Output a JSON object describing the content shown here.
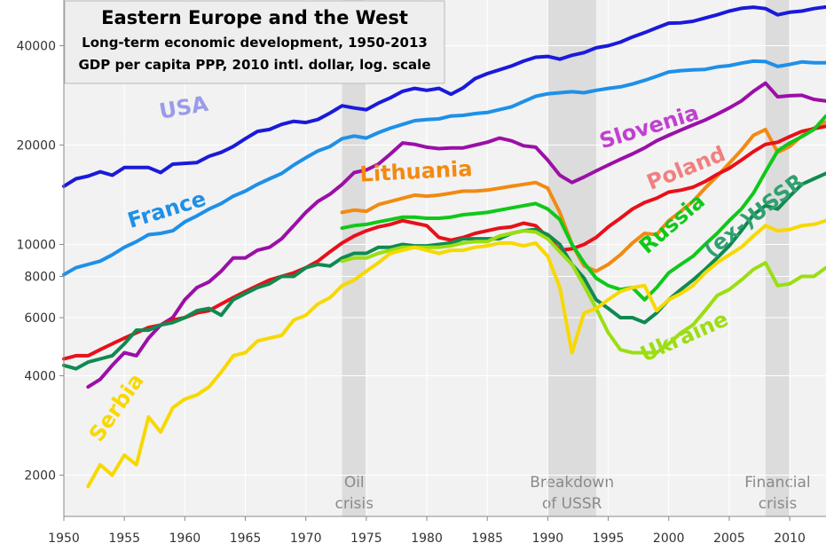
{
  "chart_data": {
    "type": "line",
    "title": "Eastern Europe and the West",
    "subtitle_1": "Long-term economic development, 1950-2013",
    "subtitle_2": "GDP per capita PPP, 2010 intl. dollar, log. scale",
    "xlabel": "",
    "ylabel": "",
    "xlim": [
      1950,
      2013
    ],
    "ylim": [
      1500,
      55000
    ],
    "yscale": "log",
    "grid": true,
    "x_ticks": [
      1950,
      1955,
      1960,
      1965,
      1970,
      1975,
      1980,
      1985,
      1990,
      1995,
      2000,
      2005,
      2010
    ],
    "y_ticks": [
      2000,
      4000,
      6000,
      8000,
      10000,
      20000,
      40000
    ],
    "y_tick_labels": [
      "2000",
      "4000",
      "6000",
      "8000",
      "10000",
      "20000",
      "40000"
    ],
    "shaded_periods": [
      {
        "start": 1973,
        "end": 1975,
        "label_1": "Oil",
        "label_2": "crisis"
      },
      {
        "start": 1990,
        "end": 1994,
        "label_1": "Breakdown",
        "label_2": "of USSR"
      },
      {
        "start": 2008,
        "end": 2010,
        "label_1": "Financial",
        "label_2": "crisis"
      }
    ],
    "series": [
      {
        "name": "USA",
        "color": "#1a1adb",
        "x": [
          1950,
          1951,
          1952,
          1953,
          1954,
          1955,
          1956,
          1957,
          1958,
          1959,
          1960,
          1961,
          1962,
          1963,
          1964,
          1965,
          1966,
          1967,
          1968,
          1969,
          1970,
          1971,
          1972,
          1973,
          1974,
          1975,
          1976,
          1977,
          1978,
          1979,
          1980,
          1981,
          1982,
          1983,
          1984,
          1985,
          1986,
          1987,
          1988,
          1989,
          1990,
          1991,
          1992,
          1993,
          1994,
          1995,
          1996,
          1997,
          1998,
          1999,
          2000,
          2001,
          2002,
          2003,
          2004,
          2005,
          2006,
          2007,
          2008,
          2009,
          2010,
          2011,
          2012,
          2013
        ],
        "values": [
          15000,
          15800,
          16100,
          16600,
          16200,
          17100,
          17100,
          17100,
          16500,
          17500,
          17600,
          17700,
          18500,
          19000,
          19800,
          20900,
          22000,
          22300,
          23100,
          23600,
          23400,
          23900,
          25000,
          26300,
          25900,
          25600,
          26800,
          27800,
          29100,
          29700,
          29300,
          29700,
          28500,
          29800,
          31800,
          32900,
          33800,
          34700,
          35900,
          36900,
          37100,
          36400,
          37400,
          38100,
          39400,
          40000,
          41000,
          42500,
          43800,
          45300,
          46800,
          46900,
          47400,
          48500,
          49600,
          50900,
          51900,
          52300,
          51800,
          49600,
          50500,
          50900,
          51800,
          52400
        ]
      },
      {
        "name": "France",
        "color": "#1e90e8",
        "x": [
          1950,
          1951,
          1952,
          1953,
          1954,
          1955,
          1956,
          1957,
          1958,
          1959,
          1960,
          1961,
          1962,
          1963,
          1964,
          1965,
          1966,
          1967,
          1968,
          1969,
          1970,
          1971,
          1972,
          1973,
          1974,
          1975,
          1976,
          1977,
          1978,
          1979,
          1980,
          1981,
          1982,
          1983,
          1984,
          1985,
          1986,
          1987,
          1988,
          1989,
          1990,
          1991,
          1992,
          1993,
          1994,
          1995,
          1996,
          1997,
          1998,
          1999,
          2000,
          2001,
          2002,
          2003,
          2004,
          2005,
          2006,
          2007,
          2008,
          2009,
          2010,
          2011,
          2012,
          2013
        ],
        "values": [
          8100,
          8500,
          8700,
          8900,
          9300,
          9800,
          10200,
          10700,
          10800,
          11000,
          11700,
          12200,
          12800,
          13300,
          14000,
          14500,
          15200,
          15800,
          16400,
          17400,
          18300,
          19200,
          19800,
          20900,
          21300,
          21000,
          21800,
          22500,
          23100,
          23700,
          23900,
          24000,
          24500,
          24600,
          24900,
          25100,
          25600,
          26100,
          27100,
          28100,
          28600,
          28800,
          29000,
          28800,
          29300,
          29700,
          30000,
          30600,
          31400,
          32300,
          33300,
          33600,
          33800,
          33900,
          34500,
          34800,
          35400,
          35900,
          35800,
          34600,
          35100,
          35700,
          35500,
          35500
        ]
      },
      {
        "name": "Slovenia",
        "color": "#9b0fa8",
        "x": [
          1952,
          1953,
          1954,
          1955,
          1956,
          1957,
          1958,
          1959,
          1960,
          1961,
          1962,
          1963,
          1964,
          1965,
          1966,
          1967,
          1968,
          1969,
          1970,
          1971,
          1972,
          1973,
          1974,
          1975,
          1976,
          1977,
          1978,
          1979,
          1980,
          1981,
          1982,
          1983,
          1984,
          1985,
          1986,
          1987,
          1988,
          1989,
          1990,
          1991,
          1992,
          1993,
          1994,
          1995,
          1996,
          1997,
          1998,
          1999,
          2000,
          2001,
          2002,
          2003,
          2004,
          2005,
          2006,
          2007,
          2008,
          2009,
          2010,
          2011,
          2012,
          2013
        ],
        "values": [
          3700,
          3900,
          4300,
          4700,
          4600,
          5200,
          5700,
          6000,
          6800,
          7400,
          7700,
          8300,
          9100,
          9100,
          9600,
          9800,
          10400,
          11400,
          12500,
          13500,
          14200,
          15200,
          16500,
          16800,
          17500,
          18800,
          20300,
          20100,
          19700,
          19500,
          19600,
          19600,
          20000,
          20400,
          21000,
          20600,
          19900,
          19700,
          18000,
          16200,
          15400,
          16000,
          16700,
          17400,
          18100,
          18800,
          19600,
          20600,
          21400,
          22200,
          23000,
          23800,
          24800,
          25900,
          27200,
          29100,
          30800,
          28000,
          28200,
          28300,
          27500,
          27200
        ]
      },
      {
        "name": "Lithuania",
        "color": "#f28a12",
        "x": [
          1973,
          1974,
          1975,
          1976,
          1977,
          1978,
          1979,
          1980,
          1981,
          1982,
          1983,
          1984,
          1985,
          1986,
          1987,
          1988,
          1989,
          1990,
          1991,
          1992,
          1993,
          1994,
          1995,
          1996,
          1997,
          1998,
          1999,
          2000,
          2001,
          2002,
          2003,
          2004,
          2005,
          2006,
          2007,
          2008,
          2009,
          2010,
          2011,
          2012,
          2013
        ],
        "values": [
          12500,
          12700,
          12600,
          13200,
          13500,
          13800,
          14100,
          14000,
          14100,
          14300,
          14500,
          14500,
          14600,
          14800,
          15000,
          15200,
          15400,
          14800,
          12500,
          10000,
          8600,
          8300,
          8700,
          9300,
          10100,
          10800,
          10700,
          11800,
          12600,
          13500,
          14800,
          16100,
          17600,
          19300,
          21400,
          22300,
          19000,
          19800,
          21300,
          22500,
          23500
        ]
      },
      {
        "name": "Poland",
        "color": "#e8101a",
        "x": [
          1950,
          1951,
          1952,
          1953,
          1954,
          1955,
          1956,
          1957,
          1958,
          1959,
          1960,
          1961,
          1962,
          1963,
          1964,
          1965,
          1966,
          1967,
          1968,
          1969,
          1970,
          1971,
          1972,
          1973,
          1974,
          1975,
          1976,
          1977,
          1978,
          1979,
          1980,
          1981,
          1982,
          1983,
          1984,
          1985,
          1986,
          1987,
          1988,
          1989,
          1990,
          1991,
          1992,
          1993,
          1994,
          1995,
          1996,
          1997,
          1998,
          1999,
          2000,
          2001,
          2002,
          2003,
          2004,
          2005,
          2006,
          2007,
          2008,
          2009,
          2010,
          2011,
          2012,
          2013
        ],
        "values": [
          4500,
          4600,
          4600,
          4800,
          5000,
          5200,
          5400,
          5600,
          5700,
          5900,
          6000,
          6200,
          6300,
          6600,
          6900,
          7200,
          7500,
          7800,
          8000,
          8200,
          8500,
          8900,
          9500,
          10100,
          10600,
          11000,
          11300,
          11500,
          11800,
          11600,
          11400,
          10500,
          10300,
          10500,
          10800,
          11000,
          11200,
          11300,
          11600,
          11400,
          10500,
          9600,
          9700,
          10000,
          10500,
          11300,
          12000,
          12800,
          13400,
          13800,
          14400,
          14600,
          14900,
          15500,
          16300,
          17000,
          18000,
          19100,
          20100,
          20400,
          21200,
          22000,
          22400,
          22800
        ]
      },
      {
        "name": "Russia",
        "color": "#10c818",
        "x": [
          1973,
          1974,
          1975,
          1976,
          1977,
          1978,
          1979,
          1980,
          1981,
          1982,
          1983,
          1984,
          1985,
          1986,
          1987,
          1988,
          1989,
          1990,
          1991,
          1992,
          1993,
          1994,
          1995,
          1996,
          1997,
          1998,
          1999,
          2000,
          2001,
          2002,
          2003,
          2004,
          2005,
          2006,
          2007,
          2008,
          2009,
          2010,
          2011,
          2012,
          2013
        ],
        "values": [
          11200,
          11400,
          11500,
          11700,
          11900,
          12100,
          12100,
          12000,
          12000,
          12100,
          12300,
          12400,
          12500,
          12700,
          12900,
          13100,
          13300,
          12800,
          11900,
          10000,
          8800,
          7900,
          7500,
          7300,
          7400,
          6800,
          7400,
          8200,
          8700,
          9200,
          10000,
          10800,
          11800,
          12800,
          14300,
          16600,
          19200,
          20300,
          21200,
          22300,
          24500
        ]
      },
      {
        "name": "(ex-)USSR",
        "color": "#0f8a50",
        "x": [
          1950,
          1951,
          1952,
          1953,
          1954,
          1955,
          1956,
          1957,
          1958,
          1959,
          1960,
          1961,
          1962,
          1963,
          1964,
          1965,
          1966,
          1967,
          1968,
          1969,
          1970,
          1971,
          1972,
          1973,
          1974,
          1975,
          1976,
          1977,
          1978,
          1979,
          1980,
          1981,
          1982,
          1983,
          1984,
          1985,
          1986,
          1987,
          1988,
          1989,
          1990,
          1991,
          1992,
          1993,
          1994,
          1995,
          1996,
          1997,
          1998,
          1999,
          2000,
          2001,
          2002,
          2003,
          2004,
          2005,
          2006,
          2007,
          2008,
          2009,
          2010,
          2011,
          2012,
          2013
        ],
        "values": [
          4300,
          4200,
          4400,
          4500,
          4600,
          5000,
          5500,
          5500,
          5700,
          5800,
          6000,
          6300,
          6400,
          6100,
          6800,
          7100,
          7400,
          7600,
          8000,
          8000,
          8500,
          8700,
          8600,
          9100,
          9400,
          9400,
          9800,
          9800,
          10000,
          9900,
          9900,
          10000,
          10100,
          10400,
          10400,
          10400,
          10400,
          10800,
          11000,
          11100,
          10700,
          10000,
          8700,
          7900,
          6800,
          6400,
          6000,
          6000,
          5800,
          6200,
          6800,
          7300,
          7800,
          8400,
          9100,
          9900,
          11000,
          12300,
          13100,
          12800,
          14000,
          15200,
          15800,
          16400
        ]
      },
      {
        "name": "Ukraine",
        "color": "#9bde12",
        "x": [
          1973,
          1974,
          1975,
          1976,
          1977,
          1978,
          1979,
          1980,
          1981,
          1982,
          1983,
          1984,
          1985,
          1986,
          1987,
          1988,
          1989,
          1990,
          1991,
          1992,
          1993,
          1994,
          1995,
          1996,
          1997,
          1998,
          1999,
          2000,
          2001,
          2002,
          2003,
          2004,
          2005,
          2006,
          2007,
          2008,
          2009,
          2010,
          2011,
          2012,
          2013
        ],
        "values": [
          8900,
          9100,
          9100,
          9400,
          9600,
          9800,
          9800,
          9800,
          9800,
          9900,
          10100,
          10200,
          10200,
          10600,
          10800,
          11000,
          10900,
          10400,
          9500,
          8700,
          7500,
          6400,
          5400,
          4800,
          4700,
          4700,
          4700,
          5000,
          5400,
          5700,
          6300,
          7000,
          7300,
          7800,
          8400,
          8800,
          7500,
          7600,
          8000,
          8000,
          8500
        ]
      },
      {
        "name": "Serbia",
        "color": "#f7d800",
        "x": [
          1952,
          1953,
          1954,
          1955,
          1956,
          1957,
          1958,
          1959,
          1960,
          1961,
          1962,
          1963,
          1964,
          1965,
          1966,
          1967,
          1968,
          1969,
          1970,
          1971,
          1972,
          1973,
          1974,
          1975,
          1976,
          1977,
          1978,
          1979,
          1980,
          1981,
          1982,
          1983,
          1984,
          1985,
          1986,
          1987,
          1988,
          1989,
          1990,
          1991,
          1992,
          1993,
          1994,
          1995,
          1996,
          1997,
          1998,
          1999,
          2000,
          2001,
          2002,
          2003,
          2004,
          2005,
          2006,
          2007,
          2008,
          2009,
          2010,
          2011,
          2012,
          2013
        ],
        "values": [
          1850,
          2150,
          2000,
          2300,
          2150,
          3000,
          2700,
          3200,
          3400,
          3500,
          3700,
          4100,
          4600,
          4700,
          5100,
          5200,
          5300,
          5900,
          6100,
          6600,
          6900,
          7500,
          7800,
          8300,
          8800,
          9400,
          9600,
          9800,
          9600,
          9400,
          9600,
          9600,
          9800,
          9900,
          10100,
          10100,
          9900,
          10100,
          9200,
          7400,
          4700,
          6200,
          6400,
          6800,
          7200,
          7400,
          7500,
          6300,
          6800,
          7100,
          7500,
          8200,
          8800,
          9300,
          9800,
          10600,
          11400,
          11000,
          11100,
          11400,
          11500,
          11800
        ]
      }
    ],
    "labels": [
      {
        "text": "USA",
        "series": "USA",
        "color": "#9b9be8"
      },
      {
        "text": "France",
        "series": "France",
        "color": "#1e90e8"
      },
      {
        "text": "Slovenia",
        "series": "Slovenia",
        "color": "#c040d0"
      },
      {
        "text": "Lithuania",
        "series": "Lithuania",
        "color": "#f28a12"
      },
      {
        "text": "Poland",
        "series": "Poland",
        "color": "#f08080"
      },
      {
        "text": "Russia",
        "series": "Russia",
        "color": "#10c818"
      },
      {
        "text": "(ex-)USSR",
        "series": "(ex-)USSR",
        "color": "#30a070"
      },
      {
        "text": "Ukraine",
        "series": "Ukraine",
        "color": "#9bde12"
      },
      {
        "text": "Serbia",
        "series": "Serbia",
        "color": "#f7d800"
      }
    ]
  }
}
